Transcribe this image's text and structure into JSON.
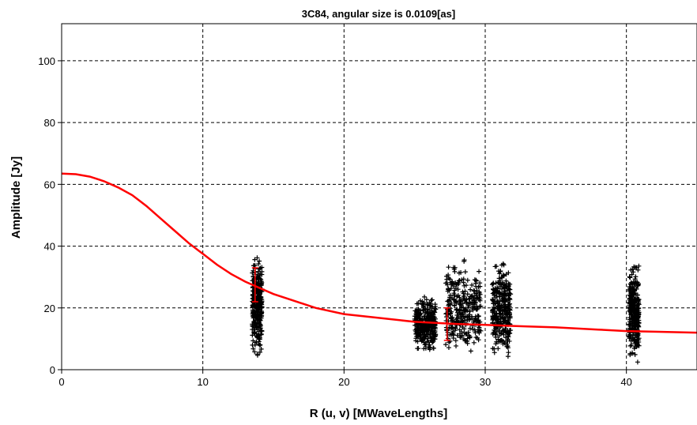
{
  "chart_data": {
    "type": "scatter",
    "title": "3C84, angular size is 0.0109[as]",
    "xlabel": "R (u, v) [MWaveLengths]",
    "ylabel": "Amplitude [Jy]",
    "xlim": [
      0,
      45
    ],
    "ylim": [
      0,
      112
    ],
    "xticks": [
      0,
      10,
      20,
      30,
      40
    ],
    "yticks": [
      0,
      20,
      40,
      60,
      80,
      100
    ],
    "grid": true,
    "colors": {
      "points": "#000000",
      "model": "#ff0000",
      "errorbar": "#ff0000"
    },
    "series": [
      {
        "type": "scatter-clusters",
        "marker": "+",
        "clusters": [
          {
            "x": [
              13.5,
              14.2
            ],
            "y": [
              2,
              40
            ]
          },
          {
            "x": [
              25.0,
              26.5
            ],
            "y": [
              4,
              25
            ]
          },
          {
            "x": [
              27.2,
              29.7
            ],
            "y": [
              0,
              38
            ]
          },
          {
            "x": [
              30.5,
              31.8
            ],
            "y": [
              0,
              39
            ]
          },
          {
            "x": [
              40.2,
              40.9
            ],
            "y": [
              0,
              37
            ]
          }
        ]
      },
      {
        "type": "line",
        "x": [
          0,
          1,
          2,
          3,
          4,
          5,
          6,
          7,
          8,
          9,
          10,
          11,
          12,
          13,
          14,
          15,
          16,
          18,
          20,
          22,
          25,
          28,
          30,
          33,
          35,
          38,
          40,
          42,
          45
        ],
        "y": [
          63.5,
          63.3,
          62.5,
          61.0,
          59.0,
          56.5,
          53.0,
          49.0,
          45.0,
          41.0,
          37.5,
          34.0,
          31.0,
          28.5,
          26.5,
          24.5,
          23.0,
          20.0,
          18.0,
          17.0,
          15.5,
          14.8,
          14.5,
          14.0,
          13.7,
          13.0,
          12.5,
          12.3,
          12.0
        ]
      },
      {
        "type": "errorbar",
        "points": [
          {
            "x": 13.7,
            "low": 22,
            "high": 33
          },
          {
            "x": 27.3,
            "low": 9.5,
            "high": 20
          }
        ]
      }
    ]
  }
}
